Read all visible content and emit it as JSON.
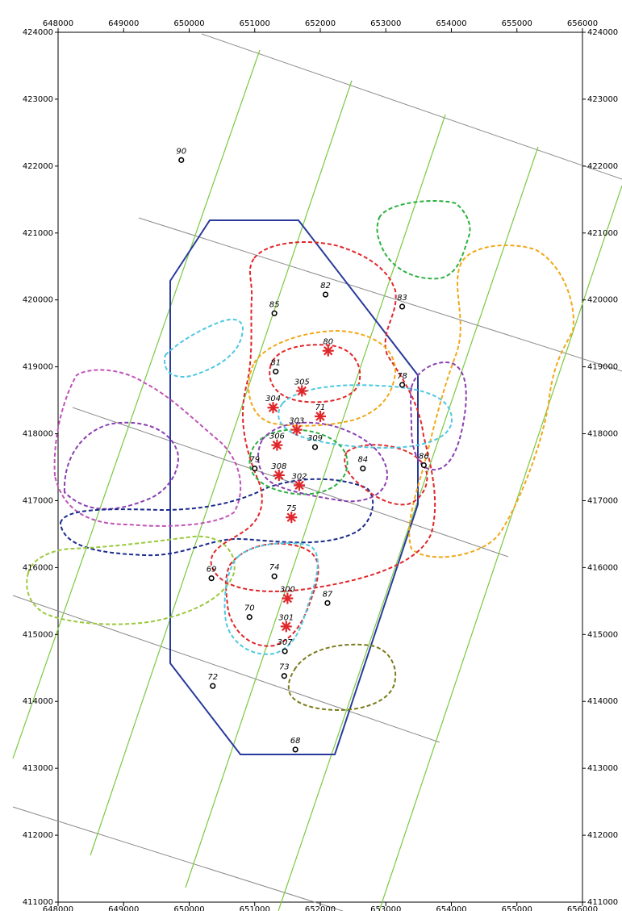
{
  "map": {
    "x_ticks": [
      "648000",
      "649000",
      "650000",
      "651000",
      "652000",
      "653000",
      "654000",
      "655000",
      "656000"
    ],
    "y_ticks": [
      "424000",
      "423000",
      "422000",
      "421000",
      "420000",
      "419000",
      "418000",
      "417000",
      "416000",
      "415000",
      "414000",
      "413000",
      "412000",
      "411000"
    ],
    "x_range": [
      648000,
      656000
    ],
    "y_range": [
      411000,
      424000
    ],
    "colors": {
      "boundary": "#2a3a9a",
      "seismic_lines": "#7ac943",
      "gray_lines": "#8a8a8a",
      "red": "#e0262a",
      "orange": "#f0a818",
      "cyan": "#4ec8e0",
      "purple": "#8a3fb0",
      "magenta": "#c053b8",
      "green": "#2db040",
      "navy": "#1a2a8a",
      "lime": "#9ac93a",
      "olive": "#7a7a1a"
    },
    "wells": [
      {
        "label": "90",
        "x": 649880,
        "y": 422090,
        "type": "circle"
      },
      {
        "label": "82",
        "x": 652080,
        "y": 420080,
        "type": "circle"
      },
      {
        "label": "85",
        "x": 651300,
        "y": 419800,
        "type": "circle"
      },
      {
        "label": "83",
        "x": 653250,
        "y": 419900,
        "type": "circle"
      },
      {
        "label": "80",
        "x": 652120,
        "y": 419240,
        "type": "star"
      },
      {
        "label": "81",
        "x": 651320,
        "y": 418930,
        "type": "circle"
      },
      {
        "label": "305",
        "x": 651720,
        "y": 418640,
        "type": "star"
      },
      {
        "label": "304",
        "x": 651280,
        "y": 418390,
        "type": "star"
      },
      {
        "label": "71",
        "x": 652000,
        "y": 418260,
        "type": "star"
      },
      {
        "label": "303",
        "x": 651640,
        "y": 418060,
        "type": "star"
      },
      {
        "label": "306",
        "x": 651340,
        "y": 417830,
        "type": "star"
      },
      {
        "label": "309",
        "x": 651920,
        "y": 417800,
        "type": "circle"
      },
      {
        "label": "84",
        "x": 652650,
        "y": 417480,
        "type": "circle"
      },
      {
        "label": "86",
        "x": 653580,
        "y": 417530,
        "type": "circle"
      },
      {
        "label": "78",
        "x": 653250,
        "y": 418730,
        "type": "circle"
      },
      {
        "label": "79",
        "x": 651000,
        "y": 417480,
        "type": "circle"
      },
      {
        "label": "308",
        "x": 651370,
        "y": 417380,
        "type": "star"
      },
      {
        "label": "302",
        "x": 651680,
        "y": 417230,
        "type": "star"
      },
      {
        "label": "75",
        "x": 651560,
        "y": 416750,
        "type": "star"
      },
      {
        "label": "74",
        "x": 651300,
        "y": 415870,
        "type": "circle"
      },
      {
        "label": "69",
        "x": 650340,
        "y": 415840,
        "type": "circle"
      },
      {
        "label": "300",
        "x": 651500,
        "y": 415540,
        "type": "star"
      },
      {
        "label": "87",
        "x": 652110,
        "y": 415470,
        "type": "circle"
      },
      {
        "label": "70",
        "x": 650920,
        "y": 415260,
        "type": "circle"
      },
      {
        "label": "301",
        "x": 651480,
        "y": 415120,
        "type": "star"
      },
      {
        "label": "307",
        "x": 651460,
        "y": 414750,
        "type": "circle"
      },
      {
        "label": "73",
        "x": 651450,
        "y": 414380,
        "type": "circle"
      },
      {
        "label": "72",
        "x": 650360,
        "y": 414230,
        "type": "circle"
      },
      {
        "label": "68",
        "x": 651620,
        "y": 413280,
        "type": "circle"
      }
    ]
  }
}
